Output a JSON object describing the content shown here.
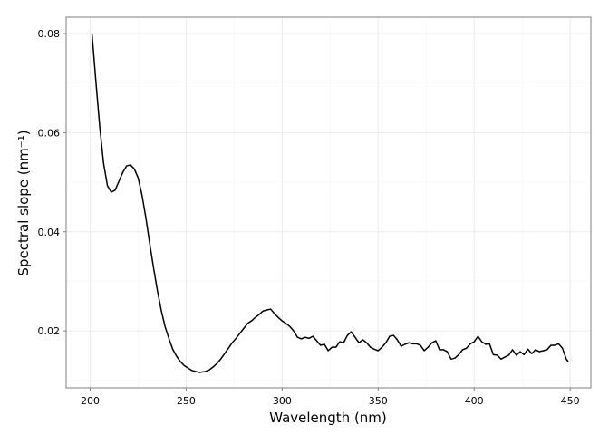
{
  "chart_data": {
    "type": "line",
    "xlabel": "Wavelength (nm)",
    "ylabel": "Spectral slope (nm⁻¹)",
    "x": [
      201,
      203,
      205,
      207,
      209,
      211,
      213,
      215,
      217,
      219,
      221,
      223,
      225,
      227,
      229,
      231,
      233,
      235,
      237,
      239,
      241,
      243,
      245,
      247,
      249,
      251,
      253,
      255,
      257,
      260,
      262,
      264,
      266,
      268,
      270,
      272,
      274,
      276,
      278,
      280,
      282,
      284,
      286,
      288,
      290,
      292,
      294,
      296,
      298,
      300,
      302,
      304,
      306,
      308,
      310,
      312,
      314,
      316,
      318,
      320,
      322,
      324,
      326,
      328,
      330,
      332,
      334,
      336,
      338,
      340,
      342,
      344,
      346,
      348,
      350,
      352,
      354,
      356,
      358,
      360,
      362,
      364,
      366,
      368,
      370,
      372,
      374,
      376,
      378,
      380,
      382,
      384,
      386,
      388,
      390,
      392,
      394,
      396,
      398,
      400,
      402,
      404,
      406,
      408,
      410,
      412,
      414,
      416,
      418,
      420,
      422,
      424,
      426,
      428,
      430,
      432,
      434,
      436,
      438,
      440,
      442,
      444,
      446,
      448,
      449
    ],
    "series": [
      {
        "name": "slope",
        "color": "#000000",
        "values": [
          0.0798,
          0.0703,
          0.0612,
          0.0538,
          0.0493,
          0.048,
          0.0484,
          0.0502,
          0.052,
          0.0533,
          0.0535,
          0.0527,
          0.0509,
          0.0474,
          0.0429,
          0.0377,
          0.0328,
          0.0282,
          0.0242,
          0.0209,
          0.0185,
          0.0163,
          0.0149,
          0.0138,
          0.013,
          0.0125,
          0.012,
          0.0118,
          0.0116,
          0.0118,
          0.0121,
          0.0127,
          0.0134,
          0.0143,
          0.0154,
          0.0165,
          0.0176,
          0.0185,
          0.0195,
          0.0205,
          0.0215,
          0.022,
          0.0227,
          0.0233,
          0.024,
          0.0242,
          0.0244,
          0.0235,
          0.0227,
          0.022,
          0.0215,
          0.0209,
          0.02,
          0.0187,
          0.0184,
          0.0187,
          0.0185,
          0.0189,
          0.018,
          0.0171,
          0.0173,
          0.016,
          0.0167,
          0.0167,
          0.0178,
          0.0176,
          0.0191,
          0.0198,
          0.0187,
          0.0176,
          0.0182,
          0.0176,
          0.0167,
          0.0163,
          0.016,
          0.0167,
          0.0176,
          0.0189,
          0.0191,
          0.0182,
          0.0169,
          0.0173,
          0.0176,
          0.0174,
          0.0174,
          0.0171,
          0.016,
          0.0167,
          0.0176,
          0.018,
          0.0162,
          0.0162,
          0.0158,
          0.0143,
          0.0145,
          0.0152,
          0.0162,
          0.0165,
          0.0174,
          0.0178,
          0.0189,
          0.0178,
          0.0173,
          0.0174,
          0.0152,
          0.0151,
          0.0143,
          0.0147,
          0.0151,
          0.0162,
          0.0151,
          0.0158,
          0.0152,
          0.0163,
          0.0154,
          0.0162,
          0.0158,
          0.016,
          0.0162,
          0.0171,
          0.0171,
          0.0174,
          0.0165,
          0.0143,
          0.0138
        ]
      }
    ],
    "xlim": [
      187.5,
      460.8
    ],
    "xticks": [
      200,
      250,
      300,
      350,
      400,
      450
    ],
    "ylim": [
      0.0085,
      0.0833
    ],
    "yticks": [
      0.02,
      0.04,
      0.06,
      0.08
    ],
    "grid": true
  }
}
